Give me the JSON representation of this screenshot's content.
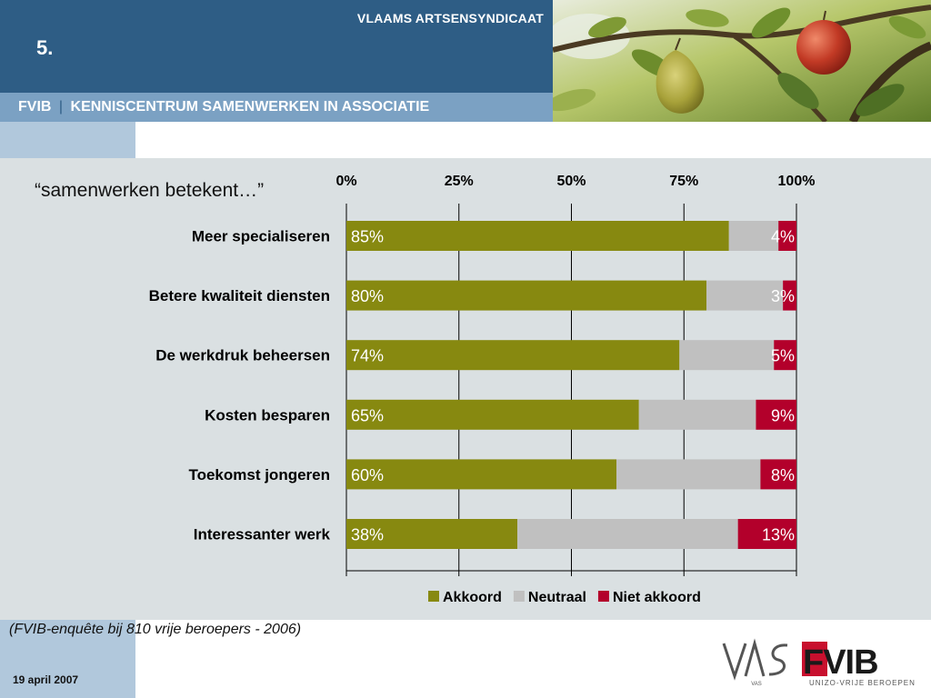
{
  "header": {
    "org_name": "VLAAMS ARTSENSYNDICAAT",
    "slide_number": "5.",
    "subtitle_left": "FVIB",
    "subtitle_separator": "|",
    "subtitle_right": "KENNISCENTRUM SAMENWERKEN IN ASSOCIATIE"
  },
  "chart_data": {
    "type": "bar",
    "orientation": "horizontal",
    "stacked": true,
    "title": "“samenwerken betekent…”",
    "categories": [
      "Meer specialiseren",
      "Betere kwaliteit  diensten",
      "De werkdruk  beheersen",
      "Kosten besparen",
      "Toekomst jongeren",
      "Interessanter werk"
    ],
    "series": [
      {
        "name": "Akkoord",
        "color": "#878910",
        "values": [
          85,
          80,
          74,
          65,
          60,
          38
        ]
      },
      {
        "name": "Neutraal",
        "color": "#c0c0c0",
        "values": [
          11,
          17,
          21,
          26,
          32,
          49
        ]
      },
      {
        "name": "Niet akkoord",
        "color": "#b3002b",
        "values": [
          4,
          3,
          5,
          9,
          8,
          13
        ]
      }
    ],
    "data_labels": {
      "Akkoord": [
        "85%",
        "80%",
        "74%",
        "65%",
        "60%",
        "38%"
      ],
      "Niet akkoord": [
        "4%",
        "3%",
        "5%",
        "9%",
        "8%",
        "13%"
      ]
    },
    "x_ticks": [
      0,
      25,
      50,
      75,
      100
    ],
    "x_tick_labels": [
      "0%",
      "25%",
      "50%",
      "75%",
      "100%"
    ],
    "xlim": [
      0,
      100
    ],
    "xaxis_position": "top",
    "grid": "vertical",
    "legend_position": "bottom"
  },
  "source_note": "(FVIB-enquête bij 810 vrije beroepers - 2006)",
  "footer": {
    "date": "19 april 2007"
  },
  "logos": {
    "vas_text": "VAS",
    "fvib_text": "FVIB",
    "fvib_tagline": "UNIZO-VRIJE BEROEPEN"
  },
  "colors": {
    "header_blue": "#2e5d85",
    "subtitle_blue": "#7ba1c3",
    "panel_grey": "#dae0e2",
    "strip_blue": "#b1c8dc",
    "logo_red": "#c8102e"
  }
}
